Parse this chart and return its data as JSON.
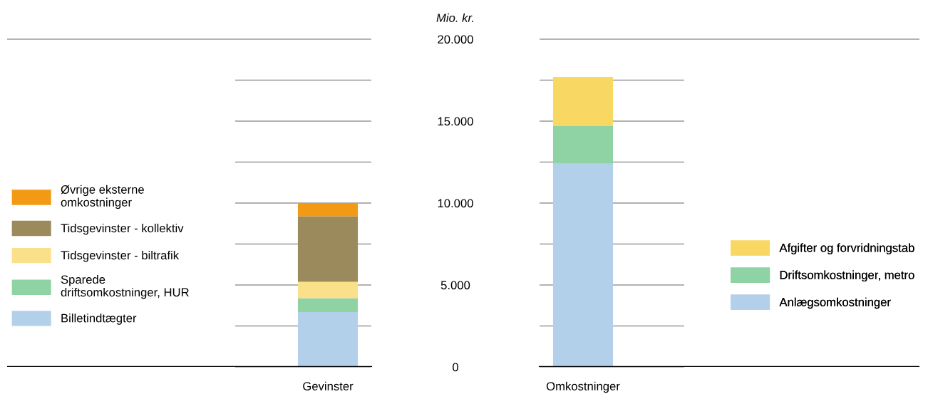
{
  "chart_data": {
    "type": "bar",
    "stacked": true,
    "ylabel": "Mio. kr.",
    "categories": [
      "Gevinster",
      "Omkostninger"
    ],
    "series": [
      {
        "name": "Billetindtægter",
        "color": "#b3d0ea",
        "values": [
          3350,
          null
        ]
      },
      {
        "name": "Sparede driftsomkostninger, HUR",
        "color": "#8fd3a5",
        "values": [
          850,
          null
        ]
      },
      {
        "name": "Tidsgevinster - biltrafik",
        "color": "#fbe08a",
        "values": [
          1000,
          null
        ]
      },
      {
        "name": "Tidsgevinster - kollektiv",
        "color": "#9a8a5c",
        "values": [
          4000,
          null
        ]
      },
      {
        "name": "Øvrige eksterne omkostninger",
        "color": "#f29a14",
        "values": [
          800,
          null
        ]
      },
      {
        "name": "Anlægsomkostninger",
        "color": "#b3d0ea",
        "values": [
          null,
          12400
        ]
      },
      {
        "name": "Driftsomkostninger, metro",
        "color": "#8fd3a5",
        "values": [
          null,
          2300
        ]
      },
      {
        "name": "Afgifter og forvridningstab",
        "color": "#f8d862",
        "values": [
          null,
          3000
        ]
      }
    ],
    "ylim": [
      0,
      20000
    ],
    "yticks": [
      0,
      {
        "value": 2500,
        "label": null
      },
      {
        "value": 5000,
        "label": "5.000"
      },
      {
        "value": 7500,
        "label": null
      },
      {
        "value": 10000,
        "label": "10.000"
      },
      {
        "value": 12500,
        "label": null
      },
      {
        "value": 15000,
        "label": "15.000"
      },
      {
        "value": 17500,
        "label": null
      },
      {
        "value": 20000,
        "label": "20.000"
      }
    ],
    "grid": "y",
    "legend": "left"
  }
}
